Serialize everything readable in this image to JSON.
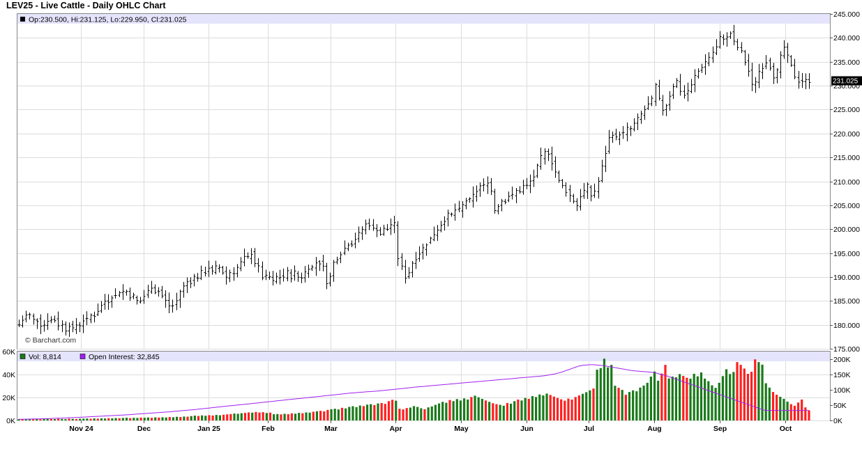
{
  "chart_title": "LEV25 - Live Cattle - Daily OHLC Chart",
  "ohlc_summary": "Op:230.500, Hi:231.125, Lo:229.950, Cl:231.025",
  "watermark": "© Barchart.com",
  "last_price_label": "231.025",
  "volume_legend": "Vol: 8,814",
  "oi_legend": "Open Interest: 32,845",
  "colors": {
    "bar": "#000000",
    "vol_up": "#1a7a1a",
    "vol_down": "#ff1f1f",
    "oi_line": "#a020f0",
    "legend_bg": "#e4e4fc",
    "grid": "#dcdcdc",
    "last_price_bg": "#000000"
  },
  "chart_data": [
    {
      "type": "ohlc",
      "title": "LEV25 - Live Cattle - Daily OHLC Chart",
      "y_axis_side": "right",
      "ylim": [
        175,
        245
      ],
      "y_ticks": [
        "245.000",
        "240.000",
        "235.000",
        "230.000",
        "225.000",
        "220.000",
        "215.000",
        "210.000",
        "205.000",
        "200.000",
        "195.000",
        "190.000",
        "185.000",
        "180.000",
        "175.000"
      ],
      "x_ticks": [
        "Nov 24",
        "Dec",
        "Jan 25",
        "Feb",
        "Mar",
        "Apr",
        "May",
        "Jun",
        "Jul",
        "Aug",
        "Sep",
        "Oct"
      ],
      "grid": true,
      "close_series": [
        180,
        181,
        182,
        182,
        181,
        181,
        180,
        180,
        181,
        181,
        181,
        180,
        180,
        179,
        180,
        179,
        180,
        180,
        181,
        181,
        182,
        182,
        183,
        184,
        185,
        185,
        186,
        186,
        187,
        187,
        187,
        186,
        186,
        185,
        185,
        186,
        187,
        188,
        187,
        187,
        186,
        185,
        184,
        184,
        185,
        187,
        188,
        189,
        189,
        190,
        190,
        191,
        191,
        192,
        191,
        192,
        192,
        191,
        190,
        191,
        191,
        192,
        193,
        194,
        194,
        195,
        193,
        192,
        190,
        190,
        190,
        189,
        190,
        190,
        190,
        191,
        190,
        191,
        190,
        190,
        191,
        192,
        192,
        193,
        193,
        192,
        189,
        190,
        193,
        194,
        195,
        196,
        197,
        197,
        198,
        199,
        200,
        201,
        201,
        200,
        200,
        199,
        200,
        200,
        201,
        201,
        194,
        192,
        190,
        191,
        193,
        194,
        195,
        196,
        197,
        198,
        199,
        200,
        201,
        202,
        203,
        203,
        204,
        204,
        205,
        206,
        206,
        207,
        208,
        209,
        209,
        210,
        208,
        204,
        205,
        206,
        206,
        207,
        207,
        208,
        208,
        209,
        209,
        210,
        211,
        213,
        215,
        216,
        216,
        214,
        212,
        210,
        209,
        208,
        207,
        206,
        205,
        207,
        208,
        209,
        207,
        208,
        210,
        213,
        216,
        219,
        220,
        219,
        220,
        220,
        221,
        221,
        222,
        223,
        224,
        225,
        226,
        227,
        230,
        227,
        225,
        226,
        228,
        230,
        231,
        229,
        228,
        229,
        230,
        232,
        233,
        234,
        235,
        236,
        237,
        238,
        240,
        240,
        240,
        241,
        239,
        238,
        237,
        235,
        233,
        230,
        231,
        233,
        234,
        235,
        234,
        232,
        233,
        236,
        238,
        236,
        234,
        232,
        231,
        231,
        231,
        231
      ]
    },
    {
      "type": "bar",
      "title": "Volume / Open Interest",
      "y_ticks_left": [
        "60K",
        "40K",
        "20K",
        "0K"
      ],
      "y_ticks_right": [
        "200K",
        "150K",
        "100K",
        "50K",
        "0K"
      ],
      "volume_ylim": [
        0,
        60000
      ],
      "open_interest_ylim": [
        0,
        225000
      ],
      "volume_series": [
        1.2,
        1.3,
        1.1,
        1.4,
        1.2,
        1.3,
        1.1,
        1.2,
        1.4,
        1.3,
        1.2,
        1.5,
        1.3,
        1.2,
        1.6,
        1.4,
        1.3,
        1.5,
        1.6,
        1.7,
        1.5,
        1.8,
        1.6,
        1.9,
        1.7,
        2.0,
        1.8,
        2.1,
        1.9,
        2.2,
        2.4,
        2.0,
        2.3,
        2.2,
        2.5,
        2.4,
        2.6,
        2.3,
        2.7,
        2.5,
        2.8,
        2.6,
        3.0,
        2.8,
        3.2,
        3.0,
        3.4,
        3.3,
        3.8,
        4.2,
        3.9,
        4.4,
        4.1,
        4.6,
        4.3,
        4.8,
        4.5,
        5.0,
        5.3,
        5.6,
        6.0,
        5.8,
        6.3,
        6.6,
        7.0,
        6.8,
        7.4,
        6.9,
        7.2,
        6.5,
        6.8,
        5.4,
        5.6,
        5.3,
        5.8,
        5.5,
        6.2,
        5.9,
        6.6,
        6.3,
        7.0,
        6.8,
        7.6,
        8.0,
        8.4,
        7.9,
        9.2,
        9.8,
        10.2,
        9.6,
        11.0,
        10.5,
        11.8,
        12.4,
        11.6,
        13.0,
        12.5,
        13.8,
        14.2,
        13.4,
        14.8,
        15.2,
        14.4,
        16.8,
        18.0,
        17.2,
        10.2,
        9.6,
        10.8,
        11.2,
        12.5,
        11.8,
        10.6,
        9.8,
        11.4,
        12.2,
        13.6,
        14.8,
        16.2,
        15.4,
        17.8,
        16.8,
        18.6,
        17.4,
        19.2,
        18.2,
        20.4,
        21.6,
        20.2,
        18.8,
        17.4,
        16.2,
        15.0,
        14.2,
        13.6,
        12.8,
        15.2,
        14.6,
        16.8,
        18.2,
        17.4,
        19.6,
        18.8,
        21.2,
        20.4,
        22.6,
        21.8,
        23.4,
        22.2,
        20.8,
        19.6,
        18.4,
        17.2,
        19.0,
        18.2,
        20.4,
        21.8,
        23.2,
        24.6,
        26.2,
        27.8,
        44.2,
        45.6,
        53.8,
        46.2,
        48.4,
        30.2,
        28.4,
        26.6,
        22.4,
        24.8,
        26.2,
        25.4,
        28.6,
        30.4,
        32.8,
        38.2,
        42.6,
        34.6,
        40.8,
        48.4,
        36.6,
        38.2,
        37.6,
        40.4,
        38.8,
        37.2,
        36.4,
        40.6,
        38.4,
        41.8,
        36.4,
        34.2,
        30.6,
        28.4,
        32.8,
        38.6,
        44.6,
        40.4,
        42.2,
        50.8,
        48.4,
        45.2,
        40.6,
        42.4,
        53.2,
        50.8,
        48.6,
        32.4,
        28.6,
        24.8,
        22.4,
        20.6,
        18.8,
        16.4,
        14.2,
        12.8,
        15.6,
        18.2,
        11.4,
        8.8
      ],
      "volume_up_flags": [
        1,
        0,
        1,
        1,
        0,
        1,
        0,
        1,
        1,
        0,
        1,
        0,
        1,
        1,
        0,
        1,
        0,
        1,
        1,
        1,
        0,
        1,
        0,
        1,
        1,
        0,
        1,
        1,
        0,
        1,
        1,
        0,
        1,
        1,
        0,
        1,
        1,
        0,
        1,
        0,
        1,
        1,
        0,
        1,
        1,
        0,
        1,
        0,
        1,
        1,
        0,
        1,
        1,
        0,
        0,
        1,
        1,
        0,
        0,
        0,
        1,
        1,
        1,
        0,
        0,
        1,
        0,
        0,
        0,
        1,
        0,
        1,
        1,
        0,
        1,
        0,
        0,
        1,
        1,
        0,
        1,
        1,
        0,
        1,
        0,
        0,
        0,
        1,
        1,
        1,
        0,
        1,
        1,
        1,
        1,
        1,
        0,
        1,
        1,
        0,
        1,
        0,
        0,
        0,
        0,
        1,
        0,
        0,
        0,
        1,
        1,
        1,
        1,
        0,
        1,
        1,
        1,
        1,
        1,
        1,
        0,
        1,
        1,
        1,
        1,
        1,
        0,
        1,
        1,
        1,
        0,
        1,
        0,
        0,
        1,
        1,
        0,
        1,
        1,
        0,
        1,
        1,
        0,
        1,
        1,
        1,
        1,
        1,
        0,
        0,
        0,
        0,
        0,
        0,
        0,
        0,
        0,
        1,
        1,
        1,
        0,
        1,
        1,
        1,
        1,
        1,
        1,
        0,
        1,
        0,
        1,
        1,
        1,
        1,
        1,
        1,
        1,
        1,
        1,
        0,
        0,
        1,
        1,
        1,
        1,
        0,
        0,
        1,
        1,
        1,
        1,
        1,
        1,
        1,
        1,
        1,
        1,
        1,
        1,
        1,
        0,
        0,
        0,
        0,
        0,
        0,
        1,
        1,
        1,
        1,
        0,
        0,
        1,
        1,
        1,
        0,
        0,
        0,
        0,
        0,
        0,
        0,
        0,
        1,
        1
      ],
      "open_interest_series": [
        4,
        4.2,
        4.4,
        4.6,
        4.8,
        5,
        5.3,
        5.6,
        6,
        6.4,
        6.8,
        7.2,
        7.6,
        8,
        8.5,
        9,
        9.5,
        10,
        10.6,
        11.2,
        11.8,
        12.4,
        13,
        13.6,
        14.2,
        14.8,
        15.4,
        16,
        16.6,
        17.2,
        17.8,
        18.5,
        19.2,
        20,
        20.8,
        21.6,
        22.4,
        23.2,
        24,
        24.8,
        25.6,
        26.4,
        27.2,
        28,
        29,
        30,
        31,
        32,
        33,
        34,
        35,
        36.2,
        37.4,
        38.6,
        39.8,
        41,
        42.2,
        43.4,
        44.6,
        45.8,
        47,
        48.2,
        49.4,
        50.6,
        51.8,
        53,
        54.2,
        55.4,
        56.6,
        57.8,
        59,
        60.2,
        61.4,
        62.6,
        63.8,
        65,
        66.2,
        67.4,
        68.6,
        69.8,
        71,
        72.2,
        73.4,
        74.6,
        75.8,
        77,
        78.2,
        79.4,
        80.6,
        81.8,
        83,
        84.2,
        85.4,
        86.6,
        87.8,
        89,
        90,
        91,
        92,
        92.8,
        93.6,
        94.4,
        95.2,
        96,
        97,
        98.2,
        99.4,
        100.6,
        101.8,
        103,
        104.2,
        105.4,
        106.6,
        107.8,
        109,
        110,
        111,
        112,
        113,
        114,
        115,
        116,
        117,
        118,
        119,
        120,
        121,
        122,
        123,
        124,
        125,
        126,
        127,
        128,
        129,
        130,
        131,
        132,
        133,
        134,
        135,
        136,
        137,
        138,
        139,
        140,
        141,
        142,
        143,
        144,
        145,
        146,
        148,
        150,
        152,
        155,
        158,
        162,
        166,
        170,
        174,
        178,
        180,
        181,
        182,
        182,
        181,
        180,
        179,
        177,
        175,
        173,
        171,
        169,
        167,
        165,
        163,
        162,
        161,
        160,
        159,
        158,
        157,
        155,
        152,
        149,
        146,
        142,
        138,
        134,
        130,
        126,
        122,
        118,
        114,
        110,
        106,
        102,
        98,
        94,
        90,
        86,
        82,
        78,
        74,
        70,
        66,
        62,
        58,
        54,
        50,
        46,
        42,
        38,
        34,
        32.8,
        32.8,
        32.8,
        32.8,
        32.8,
        32.8,
        32.8,
        32.8,
        32.8,
        32.8,
        32.8,
        32.8,
        32.8
      ]
    }
  ]
}
